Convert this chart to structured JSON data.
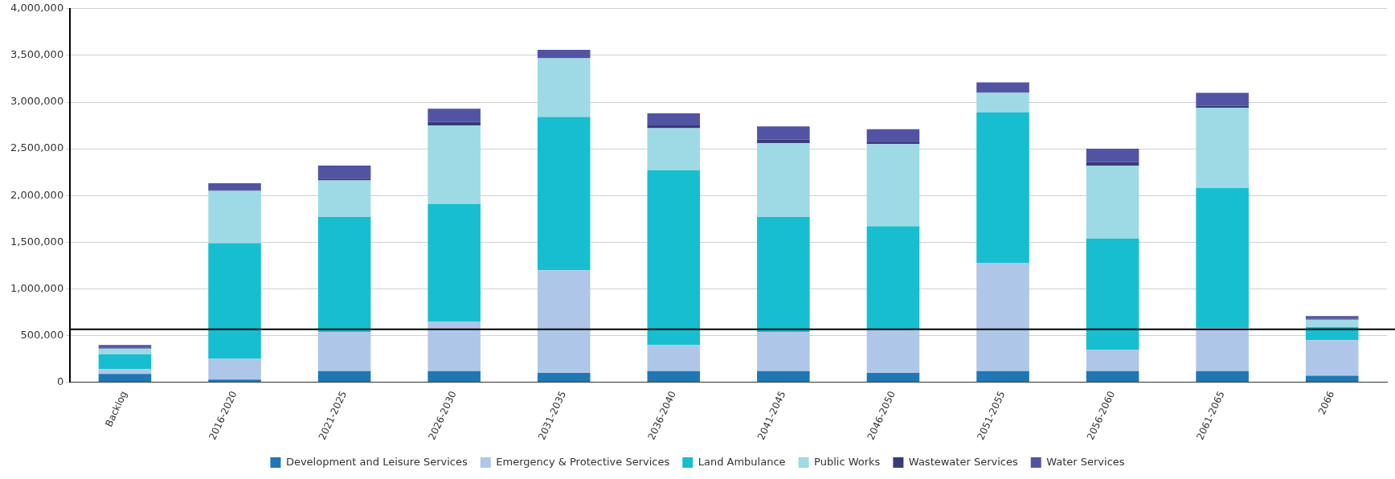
{
  "chart_data": {
    "type": "bar",
    "stacked": true,
    "categories": [
      "Backlog",
      "2016-2020",
      "2021-2025",
      "2026-2030",
      "2031-2035",
      "2036-2040",
      "2041-2045",
      "2046-2050",
      "2051-2055",
      "2056-2060",
      "2061-2065",
      "2066"
    ],
    "series": [
      {
        "name": "Development and Leisure Services",
        "color": "#1f77b4",
        "values": [
          90000,
          30000,
          120000,
          120000,
          100000,
          120000,
          120000,
          100000,
          120000,
          120000,
          120000,
          70000
        ]
      },
      {
        "name": "Emergency & Protective Services",
        "color": "#aec7e8",
        "values": [
          50000,
          220000,
          420000,
          530000,
          1100000,
          280000,
          420000,
          470000,
          1160000,
          230000,
          460000,
          380000
        ]
      },
      {
        "name": "Land Ambulance",
        "color": "#17becf",
        "values": [
          160000,
          1240000,
          1230000,
          1260000,
          1640000,
          1870000,
          1230000,
          1100000,
          1610000,
          1190000,
          1500000,
          140000
        ]
      },
      {
        "name": "Public Works",
        "color": "#9edae5",
        "values": [
          60000,
          560000,
          390000,
          840000,
          630000,
          450000,
          790000,
          880000,
          210000,
          780000,
          860000,
          80000
        ]
      },
      {
        "name": "Wastewater Services",
        "color": "#393b79",
        "values": [
          10000,
          10000,
          20000,
          40000,
          null,
          30000,
          40000,
          20000,
          10000,
          40000,
          20000,
          10000
        ]
      },
      {
        "name": "Water Services",
        "color": "#5254a3",
        "values": [
          30000,
          70000,
          140000,
          140000,
          90000,
          130000,
          140000,
          140000,
          100000,
          140000,
          140000,
          30000
        ]
      }
    ],
    "ylim": [
      0,
      4000000
    ],
    "yticks": [
      {
        "value": 0,
        "label": "0"
      },
      {
        "value": 500000,
        "label": "500,000"
      },
      {
        "value": 1000000,
        "label": "1,000,000"
      },
      {
        "value": 1500000,
        "label": "1,500,000"
      },
      {
        "value": 2000000,
        "label": "2,000,000"
      },
      {
        "value": 2500000,
        "label": "2,500,000"
      },
      {
        "value": 3000000,
        "label": "3,000,000"
      },
      {
        "value": 3500000,
        "label": "3,500,000"
      },
      {
        "value": 4000000,
        "label": "4,000,000"
      }
    ],
    "ref_lines": [
      {
        "axis": "y",
        "value": 567000,
        "color": "#000000"
      }
    ],
    "grid": "y",
    "legend": "bottom"
  }
}
